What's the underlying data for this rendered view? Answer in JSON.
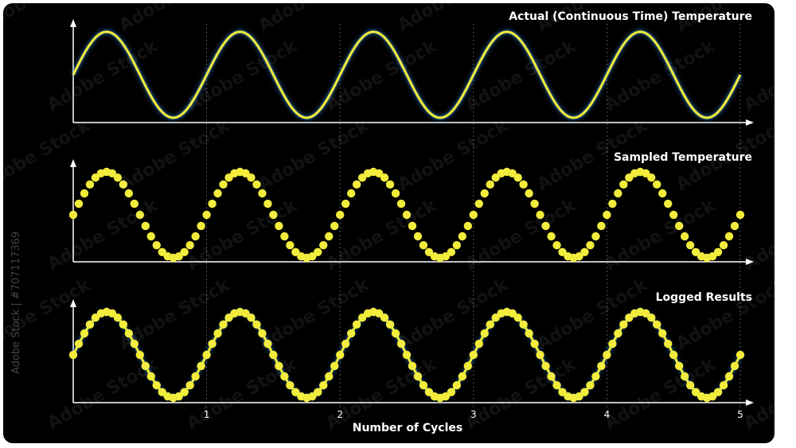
{
  "stock_id": "Adobe Stock | #707117369",
  "watermark_text": "Adobe Stock",
  "colors": {
    "background": "#000000",
    "signal": "#f2ec3c",
    "glow": "#3aa8ff",
    "axis": "#ffffff"
  },
  "chart_data": [
    {
      "type": "line",
      "title": "Actual (Continuous Time) Temperature",
      "xlim": [
        0,
        5
      ],
      "series": [
        {
          "function": "sine",
          "cycles": 5,
          "phase_at_origin": 0,
          "x": [
            0,
            5
          ]
        }
      ]
    },
    {
      "type": "scatter",
      "title": "Sampled Temperature",
      "xlim": [
        0,
        5
      ],
      "series": [
        {
          "function": "sine",
          "cycles": 5,
          "samples_per_cycle": 24,
          "connected": false
        }
      ]
    },
    {
      "type": "line",
      "title": "Logged Results",
      "xlim": [
        0,
        5
      ],
      "xlabel": "Number of Cycles",
      "xticks": [
        "1",
        "2",
        "3",
        "4",
        "5"
      ],
      "series": [
        {
          "function": "sine",
          "cycles": 5,
          "samples_per_cycle": 24,
          "connected": true
        }
      ]
    }
  ]
}
